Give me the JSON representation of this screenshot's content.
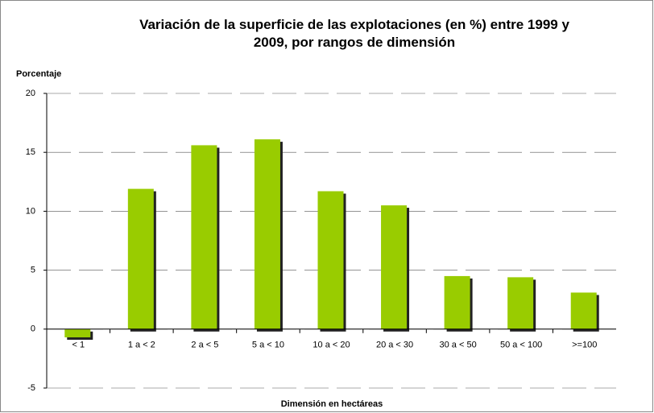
{
  "chart_data": {
    "type": "bar",
    "title": "Variación de la superficie de las explotaciones (en %) entre 1999 y 2009, por rangos de dimensión",
    "y_label": "Porcentaje",
    "x_label": "Dimensión en hectáreas",
    "categories": [
      "< 1",
      "1  a < 2",
      "2 a < 5",
      "5 a <  10",
      "10 a < 20",
      "20 a < 30",
      "30 a < 50",
      "50 a < 100",
      ">=100"
    ],
    "values": [
      -0.7,
      11.9,
      15.6,
      16.1,
      11.7,
      10.5,
      4.5,
      4.4,
      3.1
    ],
    "color": "#99cc00",
    "ylim": [
      -5,
      20
    ],
    "yticks": [
      -5,
      0,
      5,
      10,
      15,
      20
    ],
    "grid": true
  }
}
